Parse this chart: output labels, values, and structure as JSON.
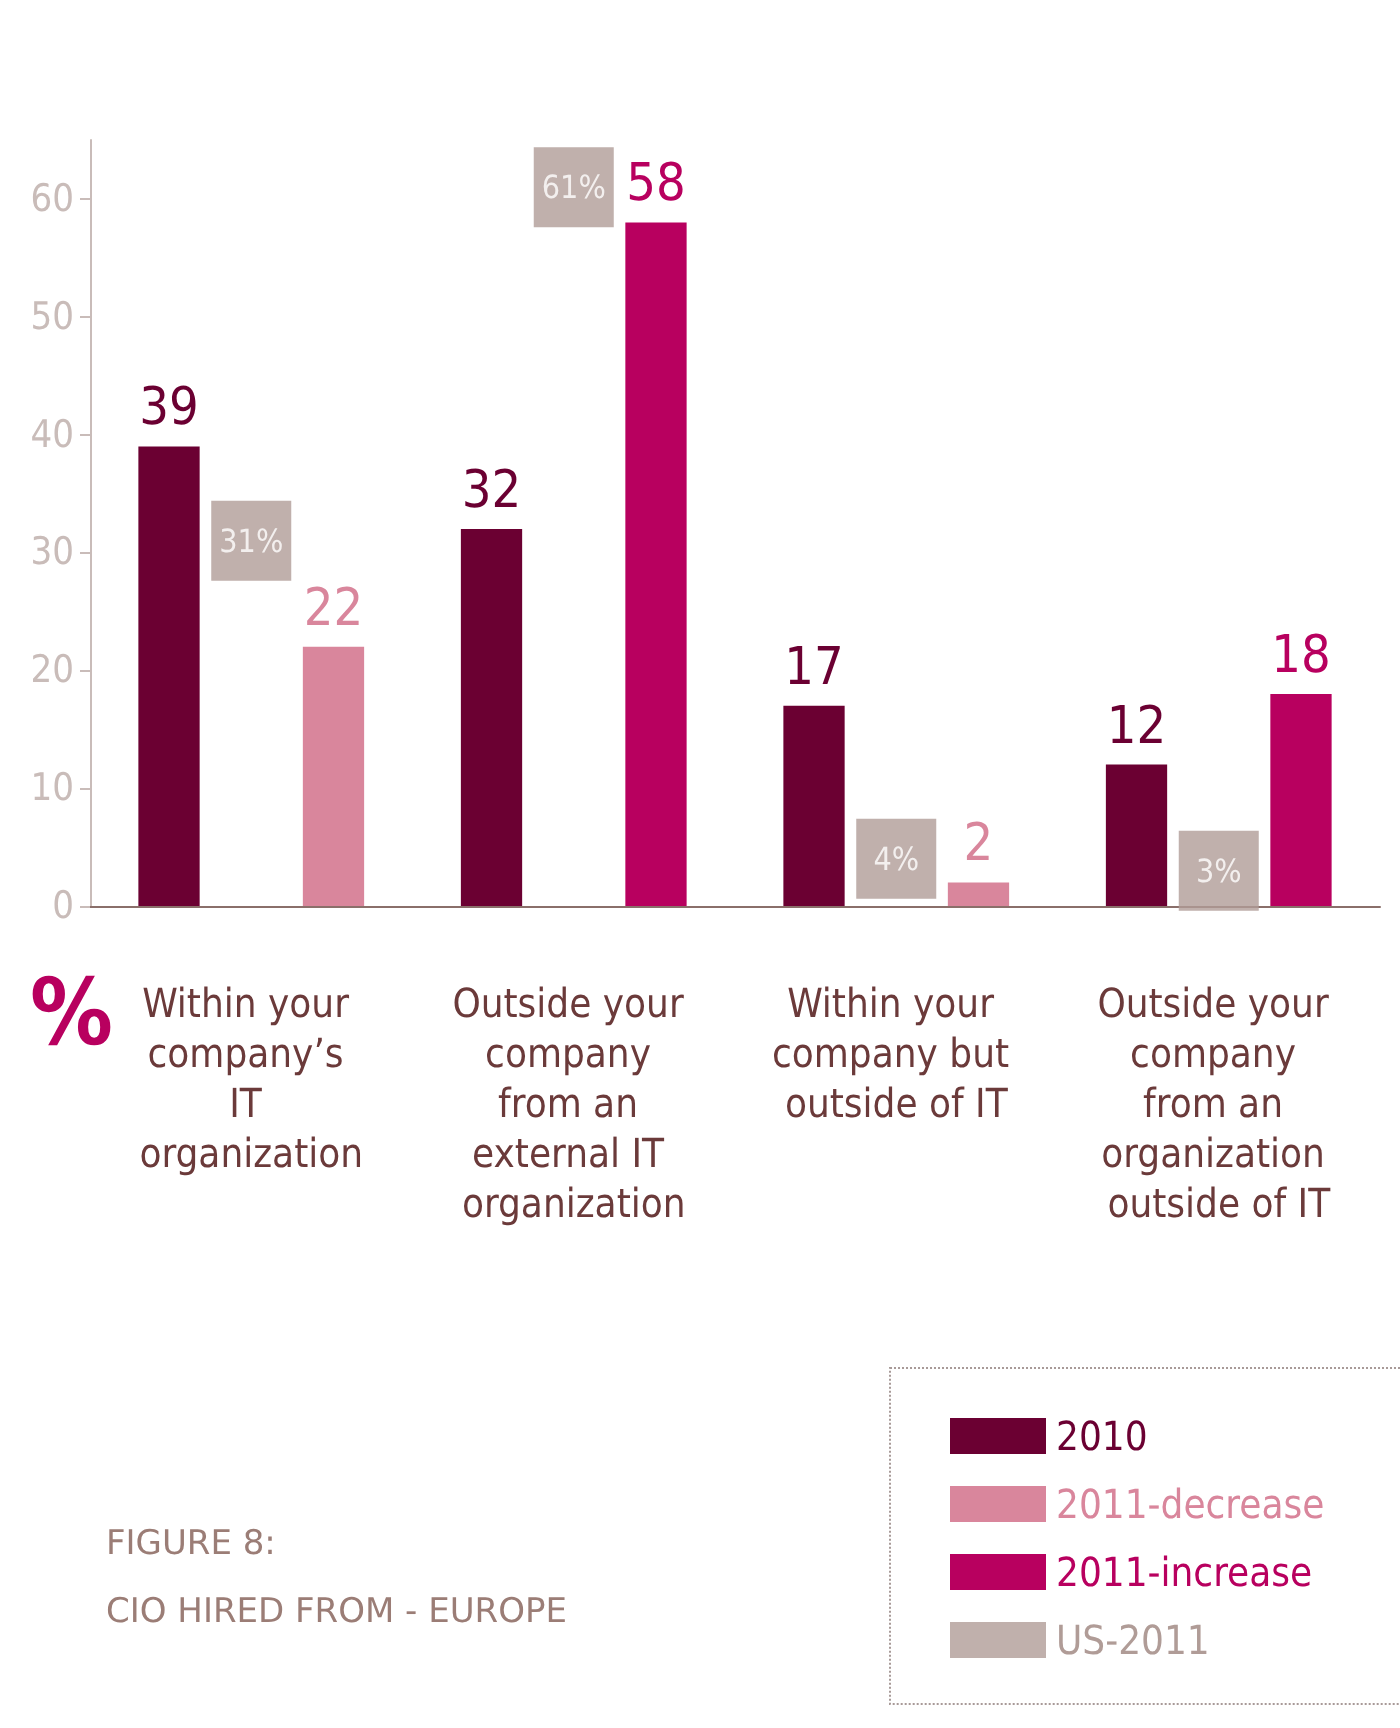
{
  "chart_data": {
    "type": "bar",
    "title": "FIGURE 8:\nCIO HIRED FROM - EUROPE",
    "ylabel": "%",
    "categories": [
      "Within your company’s IT organization",
      "Outside your company from an external IT organization",
      "Within your company but outside of IT",
      "Outside your company from an organization outside of IT"
    ],
    "series": [
      {
        "name": "2010",
        "color": "#6b0032",
        "values": [
          39,
          32,
          17,
          12
        ]
      },
      {
        "name": "2011-decrease",
        "color": "#d9869c",
        "values": [
          22,
          null,
          2,
          null
        ]
      },
      {
        "name": "2011-increase",
        "color": "#b8005f",
        "values": [
          null,
          58,
          null,
          18
        ]
      },
      {
        "name": "US-2011",
        "type": "scatter",
        "marker": "square",
        "color": "#b09c97",
        "values": [
          31,
          61,
          4,
          3
        ],
        "value_labels": [
          "31%",
          "61%",
          "4%",
          "3%"
        ]
      }
    ],
    "data_labels": true,
    "ylim": [
      0,
      65
    ],
    "yticks": [
      0,
      10,
      20,
      30,
      40,
      50,
      60
    ],
    "grid": false,
    "legend": "bottom right"
  }
}
